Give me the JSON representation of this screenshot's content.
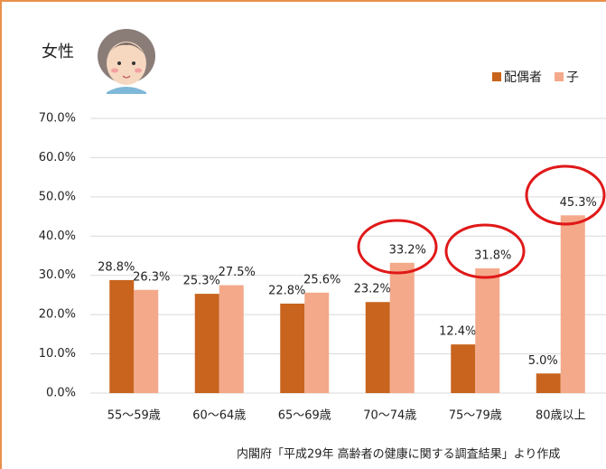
{
  "chart_data": {
    "type": "bar",
    "title": "女性",
    "categories": [
      "55～59歳",
      "60～64歳",
      "65～69歳",
      "70～74歳",
      "75～79歳",
      "80歳以上"
    ],
    "series": [
      {
        "name": "配偶者",
        "color": "#c8641e",
        "values": [
          28.8,
          25.3,
          22.8,
          23.2,
          12.4,
          5.0
        ],
        "value_labels": [
          "28.8%",
          "25.3%",
          "22.8%",
          "23.2%",
          "12.4%",
          "5.0%"
        ]
      },
      {
        "name": "子",
        "color": "#f4a98a",
        "values": [
          26.3,
          27.5,
          25.6,
          33.2,
          31.8,
          45.3
        ],
        "value_labels": [
          "26.3%",
          "27.5%",
          "25.6%",
          "33.2%",
          "31.8%",
          "45.3%"
        ]
      }
    ],
    "ylim": [
      0,
      70
    ],
    "yticks": [
      {
        "value": 0,
        "label": "0.0%"
      },
      {
        "value": 10,
        "label": "10.0%"
      },
      {
        "value": 20,
        "label": "20.0%"
      },
      {
        "value": 30,
        "label": "30.0%"
      },
      {
        "value": 40,
        "label": "40.0%"
      },
      {
        "value": 50,
        "label": "50.0%"
      },
      {
        "value": 60,
        "label": "60.0%"
      },
      {
        "value": 70,
        "label": "70.0%"
      }
    ],
    "grid": true,
    "source": "内閣府「平成29年 高齢者の健康に関する調査結果」より作成"
  }
}
